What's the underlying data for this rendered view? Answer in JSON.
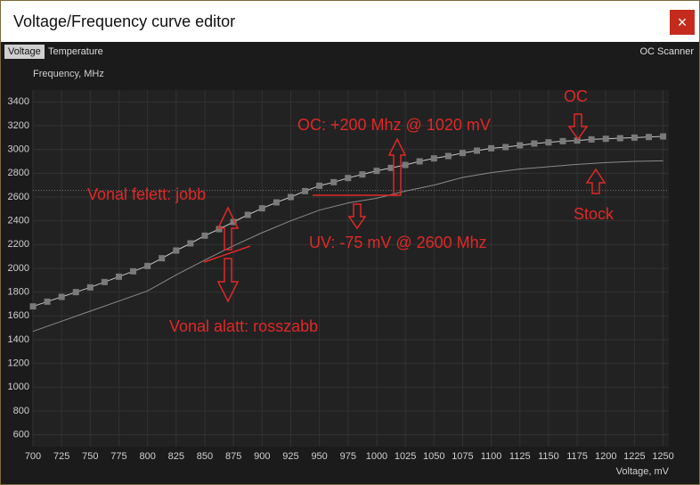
{
  "window": {
    "title": "Voltage/Frequency curve editor",
    "close": "×"
  },
  "tabs": [
    "Voltage",
    "Temperature"
  ],
  "oc_scanner": "OC Scanner",
  "chart_data": {
    "type": "line",
    "ylabel": "Frequency, MHz",
    "xlabel": "Voltage, mV",
    "xlim": [
      700,
      1255
    ],
    "ylim": [
      500,
      3500
    ],
    "xticks": [
      700,
      725,
      750,
      775,
      800,
      825,
      850,
      875,
      900,
      925,
      950,
      975,
      1000,
      1025,
      1050,
      1075,
      1100,
      1125,
      1150,
      1175,
      1200,
      1225,
      1250
    ],
    "yticks": [
      600,
      800,
      1000,
      1200,
      1400,
      1600,
      1800,
      2000,
      2200,
      2400,
      2600,
      2800,
      3000,
      3200,
      3400
    ],
    "grid": true,
    "reference_line": 2655,
    "series": [
      {
        "name": "OC",
        "color": "#7a7a7a",
        "line_color": "#c8c8c8",
        "markers": true,
        "x": [
          700,
          712.5,
          725,
          737.5,
          750,
          762.5,
          775,
          787.5,
          800,
          812.5,
          825,
          837.5,
          850,
          862.5,
          875,
          887.5,
          900,
          912.5,
          925,
          937.5,
          950,
          962.5,
          975,
          987.5,
          1000,
          1012.5,
          1025,
          1037.5,
          1050,
          1062.5,
          1075,
          1087.5,
          1100,
          1112.5,
          1125,
          1137.5,
          1150,
          1162.5,
          1175,
          1187.5,
          1200,
          1212.5,
          1225,
          1237.5,
          1250
        ],
        "values": [
          1680,
          1720,
          1760,
          1800,
          1840,
          1885,
          1930,
          1975,
          2020,
          2085,
          2150,
          2210,
          2275,
          2330,
          2390,
          2450,
          2505,
          2555,
          2600,
          2650,
          2695,
          2725,
          2760,
          2790,
          2820,
          2845,
          2870,
          2900,
          2925,
          2945,
          2970,
          2990,
          3010,
          3020,
          3035,
          3050,
          3060,
          3070,
          3075,
          3085,
          3090,
          3095,
          3100,
          3105,
          3110
        ]
      },
      {
        "name": "Stock",
        "color": "#8a8a8a",
        "markers": false,
        "x": [
          700,
          725,
          750,
          775,
          800,
          825,
          850,
          875,
          900,
          925,
          950,
          975,
          1000,
          1025,
          1050,
          1075,
          1100,
          1125,
          1150,
          1175,
          1200,
          1225,
          1250
        ],
        "values": [
          1470,
          1555,
          1640,
          1725,
          1810,
          1945,
          2070,
          2190,
          2300,
          2400,
          2490,
          2550,
          2590,
          2650,
          2700,
          2765,
          2805,
          2835,
          2855,
          2875,
          2890,
          2900,
          2905
        ]
      }
    ],
    "annotations": [
      "OC: +200 Mhz @ 1020 mV",
      "Vonal felett: jobb",
      "UV: -75 mV @ 2600 Mhz",
      "Vonal alatt: rosszabb"
    ]
  }
}
